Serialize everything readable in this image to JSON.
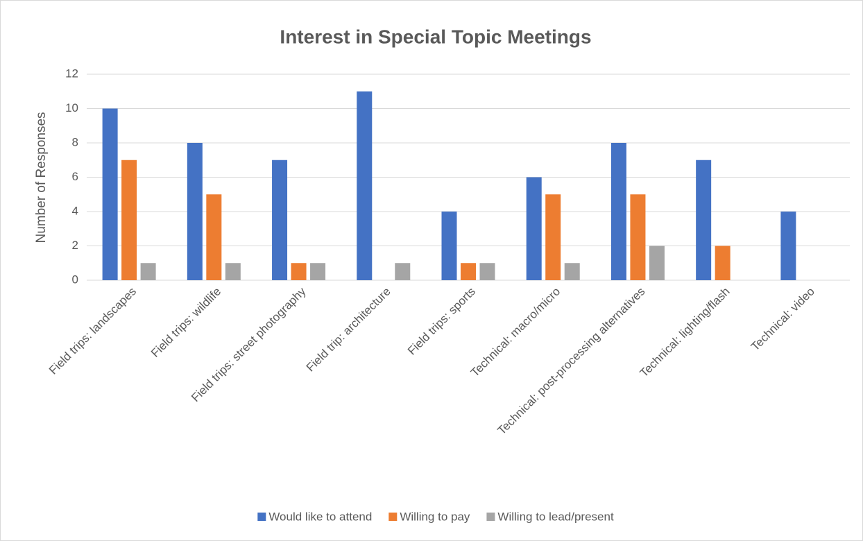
{
  "chart_data": {
    "type": "bar",
    "title": "Interest in Special Topic Meetings",
    "ylabel": "Number of Responses",
    "categories": [
      "Field trips: landscapes",
      "Field trips: wildlife",
      "Field trips: street photography",
      "Field trip: architecture",
      "Field trips: sports",
      "Technical: macro/micro",
      "Technical: post-processing alternatives",
      "Technical: lighting/flash",
      "Technical: video"
    ],
    "series": [
      {
        "name": "Would like to attend",
        "color": "#4472c4",
        "values": [
          10,
          8,
          7,
          11,
          4,
          6,
          8,
          7,
          4
        ]
      },
      {
        "name": "Willing to pay",
        "color": "#ed7d31",
        "values": [
          7,
          5,
          1,
          0,
          1,
          5,
          5,
          2,
          0
        ]
      },
      {
        "name": "Willing to lead/present",
        "color": "#a5a5a5",
        "values": [
          1,
          1,
          1,
          1,
          1,
          1,
          2,
          0,
          0
        ]
      }
    ],
    "ylim": [
      0,
      12
    ],
    "yticks": [
      0,
      2,
      4,
      6,
      8,
      10,
      12
    ],
    "grid": true,
    "legend": "bottom"
  }
}
